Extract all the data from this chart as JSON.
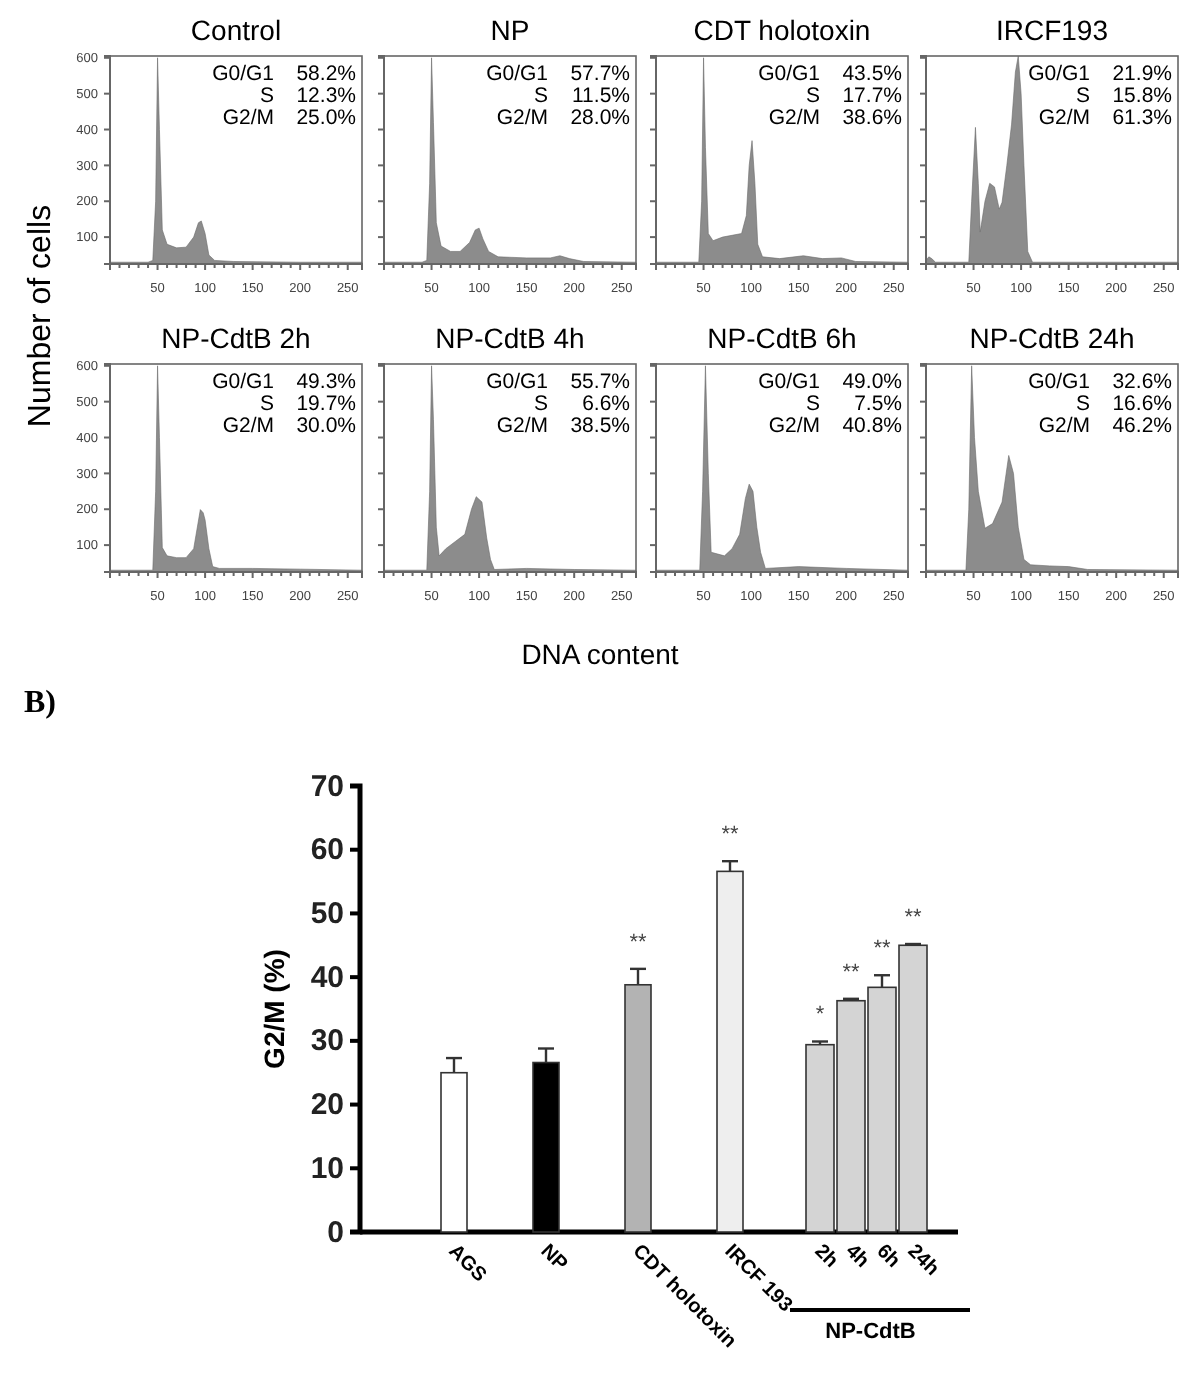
{
  "chart_data": [
    {
      "type": "area",
      "title": "Control",
      "ylabel": "Number of cells",
      "annotations": [
        "G0/G1 58.2%",
        "S 12.3%",
        "G2/M 25.0%"
      ],
      "xlim": [
        0,
        265
      ],
      "ylim": [
        25,
        605
      ],
      "xticks": [
        {
          "value": 10,
          "label": null
        },
        {
          "value": 20,
          "label": null
        },
        {
          "value": 30,
          "label": null
        },
        {
          "value": 40,
          "label": null
        },
        50,
        {
          "value": 60,
          "label": null
        },
        {
          "value": 70,
          "label": null
        },
        {
          "value": 80,
          "label": null
        },
        {
          "value": 90,
          "label": null
        },
        100,
        {
          "value": 110,
          "label": null
        },
        {
          "value": 120,
          "label": null
        },
        {
          "value": 130,
          "label": null
        },
        {
          "value": 140,
          "label": null
        },
        150,
        {
          "value": 160,
          "label": null
        },
        {
          "value": 170,
          "label": null
        },
        {
          "value": 180,
          "label": null
        },
        {
          "value": 190,
          "label": null
        },
        200,
        {
          "value": 210,
          "label": null
        },
        {
          "value": 220,
          "label": null
        },
        {
          "value": 230,
          "label": null
        },
        {
          "value": 240,
          "label": null
        },
        250
      ],
      "yticks": [
        100,
        200,
        300,
        400,
        500,
        600
      ],
      "marker": "none",
      "series": [
        {
          "color": "#8c8c8c",
          "x": [
            0,
            40,
            45,
            48,
            50,
            52,
            55,
            60,
            70,
            80,
            88,
            93,
            96,
            100,
            104,
            110,
            130,
            200,
            265
          ],
          "values": [
            30,
            30,
            35,
            200,
            600,
            400,
            120,
            80,
            70,
            72,
            100,
            140,
            145,
            110,
            50,
            35,
            32,
            30,
            30
          ]
        }
      ]
    },
    {
      "type": "area",
      "title": "NP",
      "annotations": [
        "G0/G1 57.7%",
        "S 11.5%",
        "G2/M 28.0%"
      ],
      "xlim": [
        0,
        265
      ],
      "ylim": [
        25,
        605
      ],
      "tick_labels": "x",
      "xticks": [
        {
          "value": 10,
          "label": null
        },
        {
          "value": 20,
          "label": null
        },
        {
          "value": 30,
          "label": null
        },
        {
          "value": 40,
          "label": null
        },
        50,
        {
          "value": 60,
          "label": null
        },
        {
          "value": 70,
          "label": null
        },
        {
          "value": 80,
          "label": null
        },
        {
          "value": 90,
          "label": null
        },
        100,
        {
          "value": 110,
          "label": null
        },
        {
          "value": 120,
          "label": null
        },
        {
          "value": 130,
          "label": null
        },
        {
          "value": 140,
          "label": null
        },
        150,
        {
          "value": 160,
          "label": null
        },
        {
          "value": 170,
          "label": null
        },
        {
          "value": 180,
          "label": null
        },
        {
          "value": 190,
          "label": null
        },
        200,
        {
          "value": 210,
          "label": null
        },
        {
          "value": 220,
          "label": null
        },
        {
          "value": 230,
          "label": null
        },
        {
          "value": 240,
          "label": null
        },
        250
      ],
      "yticks": [
        100,
        200,
        300,
        400,
        500,
        600
      ],
      "marker": "none",
      "series": [
        {
          "color": "#8c8c8c",
          "x": [
            0,
            40,
            45,
            48,
            50,
            52,
            55,
            60,
            70,
            80,
            90,
            96,
            100,
            104,
            110,
            120,
            150,
            175,
            185,
            195,
            210,
            265
          ],
          "values": [
            30,
            30,
            35,
            250,
            600,
            420,
            140,
            75,
            60,
            60,
            85,
            120,
            125,
            95,
            60,
            45,
            42,
            42,
            48,
            40,
            32,
            30
          ]
        }
      ]
    },
    {
      "type": "area",
      "title": "CDT holotoxin",
      "annotations": [
        "G0/G1 43.5%",
        "S 17.7%",
        "G2/M 38.6%"
      ],
      "xlim": [
        0,
        265
      ],
      "ylim": [
        25,
        605
      ],
      "tick_labels": "x",
      "xticks": [
        {
          "value": 10,
          "label": null
        },
        {
          "value": 20,
          "label": null
        },
        {
          "value": 30,
          "label": null
        },
        {
          "value": 40,
          "label": null
        },
        50,
        {
          "value": 60,
          "label": null
        },
        {
          "value": 70,
          "label": null
        },
        {
          "value": 80,
          "label": null
        },
        {
          "value": 90,
          "label": null
        },
        100,
        {
          "value": 110,
          "label": null
        },
        {
          "value": 120,
          "label": null
        },
        {
          "value": 130,
          "label": null
        },
        {
          "value": 140,
          "label": null
        },
        150,
        {
          "value": 160,
          "label": null
        },
        {
          "value": 170,
          "label": null
        },
        {
          "value": 180,
          "label": null
        },
        {
          "value": 190,
          "label": null
        },
        200,
        {
          "value": 210,
          "label": null
        },
        {
          "value": 220,
          "label": null
        },
        {
          "value": 230,
          "label": null
        },
        {
          "value": 240,
          "label": null
        },
        250
      ],
      "yticks": [
        100,
        200,
        300,
        400,
        500,
        600
      ],
      "marker": "none",
      "series": [
        {
          "color": "#8c8c8c",
          "x": [
            0,
            45,
            48,
            50,
            52,
            55,
            60,
            70,
            80,
            90,
            95,
            98,
            101,
            104,
            107,
            112,
            130,
            155,
            175,
            195,
            210,
            265
          ],
          "values": [
            30,
            30,
            200,
            600,
            350,
            110,
            90,
            100,
            105,
            110,
            160,
            300,
            369,
            250,
            80,
            45,
            40,
            48,
            40,
            42,
            32,
            30
          ]
        }
      ]
    },
    {
      "type": "area",
      "title": "IRCF193",
      "annotations": [
        "G0/G1 21.9%",
        "S 15.8%",
        "G2/M 61.3%"
      ],
      "xlim": [
        0,
        265
      ],
      "ylim": [
        25,
        605
      ],
      "tick_labels": "x",
      "xticks": [
        {
          "value": 10,
          "label": null
        },
        {
          "value": 20,
          "label": null
        },
        {
          "value": 30,
          "label": null
        },
        {
          "value": 40,
          "label": null
        },
        50,
        {
          "value": 60,
          "label": null
        },
        {
          "value": 70,
          "label": null
        },
        {
          "value": 80,
          "label": null
        },
        {
          "value": 90,
          "label": null
        },
        100,
        {
          "value": 110,
          "label": null
        },
        {
          "value": 120,
          "label": null
        },
        {
          "value": 130,
          "label": null
        },
        {
          "value": 140,
          "label": null
        },
        150,
        {
          "value": 160,
          "label": null
        },
        {
          "value": 170,
          "label": null
        },
        {
          "value": 180,
          "label": null
        },
        {
          "value": 190,
          "label": null
        },
        200,
        {
          "value": 210,
          "label": null
        },
        {
          "value": 220,
          "label": null
        },
        {
          "value": 230,
          "label": null
        },
        {
          "value": 240,
          "label": null
        },
        250
      ],
      "yticks": [
        100,
        200,
        300,
        400,
        500,
        600
      ],
      "marker": "none",
      "series": [
        {
          "color": "#8c8c8c",
          "x": [
            0,
            3,
            6,
            10,
            45,
            48,
            52,
            55,
            57,
            62,
            67,
            72,
            77,
            80,
            85,
            90,
            94,
            97,
            100,
            103,
            107,
            112,
            265
          ],
          "values": [
            35,
            45,
            40,
            30,
            30,
            200,
            406,
            250,
            114,
            200,
            250,
            240,
            178,
            197,
            300,
            415,
            560,
            605,
            500,
            300,
            60,
            30,
            30
          ]
        }
      ]
    },
    {
      "type": "area",
      "title": "NP-CdtB 2h",
      "annotations": [
        "G0/G1 49.3%",
        "S 19.7%",
        "G2/M 30.0%"
      ],
      "xlim": [
        0,
        265
      ],
      "ylim": [
        25,
        605
      ],
      "xticks": [
        {
          "value": 10,
          "label": null
        },
        {
          "value": 20,
          "label": null
        },
        {
          "value": 30,
          "label": null
        },
        {
          "value": 40,
          "label": null
        },
        50,
        {
          "value": 60,
          "label": null
        },
        {
          "value": 70,
          "label": null
        },
        {
          "value": 80,
          "label": null
        },
        {
          "value": 90,
          "label": null
        },
        100,
        {
          "value": 110,
          "label": null
        },
        {
          "value": 120,
          "label": null
        },
        {
          "value": 130,
          "label": null
        },
        {
          "value": 140,
          "label": null
        },
        150,
        {
          "value": 160,
          "label": null
        },
        {
          "value": 170,
          "label": null
        },
        {
          "value": 180,
          "label": null
        },
        {
          "value": 190,
          "label": null
        },
        200,
        {
          "value": 210,
          "label": null
        },
        {
          "value": 220,
          "label": null
        },
        {
          "value": 230,
          "label": null
        },
        {
          "value": 240,
          "label": null
        },
        250
      ],
      "yticks": [
        100,
        200,
        300,
        400,
        500,
        600
      ],
      "marker": "none",
      "series": [
        {
          "color": "#8c8c8c",
          "x": [
            0,
            45,
            48,
            50,
            52,
            55,
            60,
            70,
            80,
            88,
            95,
            98,
            100,
            104,
            108,
            115,
            150,
            200,
            265
          ],
          "values": [
            30,
            30,
            250,
            600,
            400,
            93,
            70,
            65,
            65,
            90,
            199,
            190,
            170,
            90,
            40,
            35,
            35,
            33,
            30
          ]
        }
      ]
    },
    {
      "type": "area",
      "title": "NP-CdtB 4h",
      "xlabel": "DNA content",
      "annotations": [
        "G0/G1 55.7%",
        "S 6.6%",
        "G2/M 38.5%"
      ],
      "xlim": [
        0,
        265
      ],
      "ylim": [
        25,
        605
      ],
      "tick_labels": "x",
      "xticks": [
        {
          "value": 10,
          "label": null
        },
        {
          "value": 20,
          "label": null
        },
        {
          "value": 30,
          "label": null
        },
        {
          "value": 40,
          "label": null
        },
        50,
        {
          "value": 60,
          "label": null
        },
        {
          "value": 70,
          "label": null
        },
        {
          "value": 80,
          "label": null
        },
        {
          "value": 90,
          "label": null
        },
        100,
        {
          "value": 110,
          "label": null
        },
        {
          "value": 120,
          "label": null
        },
        {
          "value": 130,
          "label": null
        },
        {
          "value": 140,
          "label": null
        },
        150,
        {
          "value": 160,
          "label": null
        },
        {
          "value": 170,
          "label": null
        },
        {
          "value": 180,
          "label": null
        },
        {
          "value": 190,
          "label": null
        },
        200,
        {
          "value": 210,
          "label": null
        },
        {
          "value": 220,
          "label": null
        },
        {
          "value": 230,
          "label": null
        },
        {
          "value": 240,
          "label": null
        },
        250
      ],
      "yticks": [
        100,
        200,
        300,
        400,
        500,
        600
      ],
      "marker": "none",
      "series": [
        {
          "color": "#8c8c8c",
          "x": [
            0,
            45,
            48,
            50,
            52,
            55,
            58,
            65,
            75,
            85,
            92,
            97,
            103,
            108,
            112,
            116,
            150,
            200,
            265
          ],
          "values": [
            30,
            30,
            250,
            600,
            450,
            150,
            70,
            90,
            110,
            130,
            200,
            235,
            220,
            120,
            60,
            32,
            35,
            32,
            30
          ]
        }
      ]
    },
    {
      "type": "area",
      "title": "NP-CdtB 6h",
      "annotations": [
        "G0/G1 49.0%",
        "S 7.5%",
        "G2/M 40.8%"
      ],
      "xlim": [
        0,
        265
      ],
      "ylim": [
        25,
        605
      ],
      "tick_labels": "x",
      "xticks": [
        {
          "value": 10,
          "label": null
        },
        {
          "value": 20,
          "label": null
        },
        {
          "value": 30,
          "label": null
        },
        {
          "value": 40,
          "label": null
        },
        50,
        {
          "value": 60,
          "label": null
        },
        {
          "value": 70,
          "label": null
        },
        {
          "value": 80,
          "label": null
        },
        {
          "value": 90,
          "label": null
        },
        100,
        {
          "value": 110,
          "label": null
        },
        {
          "value": 120,
          "label": null
        },
        {
          "value": 130,
          "label": null
        },
        {
          "value": 140,
          "label": null
        },
        150,
        {
          "value": 160,
          "label": null
        },
        {
          "value": 170,
          "label": null
        },
        {
          "value": 180,
          "label": null
        },
        {
          "value": 190,
          "label": null
        },
        200,
        {
          "value": 210,
          "label": null
        },
        {
          "value": 220,
          "label": null
        },
        {
          "value": 230,
          "label": null
        },
        {
          "value": 240,
          "label": null
        },
        250
      ],
      "yticks": [
        100,
        200,
        300,
        400,
        500,
        600
      ],
      "marker": "none",
      "series": [
        {
          "color": "#8c8c8c",
          "x": [
            0,
            46,
            49,
            52,
            55,
            58,
            65,
            72,
            80,
            88,
            94,
            98,
            102,
            106,
            110,
            115,
            150,
            200,
            265
          ],
          "values": [
            30,
            30,
            250,
            600,
            300,
            80,
            75,
            70,
            90,
            130,
            230,
            270,
            250,
            150,
            80,
            35,
            40,
            35,
            30
          ]
        }
      ]
    },
    {
      "type": "area",
      "title": "NP-CdtB 24h",
      "annotations": [
        "G0/G1 32.6%",
        "S 16.6%",
        "G2/M 46.2%"
      ],
      "xlim": [
        0,
        265
      ],
      "ylim": [
        25,
        605
      ],
      "tick_labels": "x",
      "xticks": [
        {
          "value": 10,
          "label": null
        },
        {
          "value": 20,
          "label": null
        },
        {
          "value": 30,
          "label": null
        },
        {
          "value": 40,
          "label": null
        },
        50,
        {
          "value": 60,
          "label": null
        },
        {
          "value": 70,
          "label": null
        },
        {
          "value": 80,
          "label": null
        },
        {
          "value": 90,
          "label": null
        },
        100,
        {
          "value": 110,
          "label": null
        },
        {
          "value": 120,
          "label": null
        },
        {
          "value": 130,
          "label": null
        },
        {
          "value": 140,
          "label": null
        },
        150,
        {
          "value": 160,
          "label": null
        },
        {
          "value": 170,
          "label": null
        },
        {
          "value": 180,
          "label": null
        },
        {
          "value": 190,
          "label": null
        },
        200,
        {
          "value": 210,
          "label": null
        },
        {
          "value": 220,
          "label": null
        },
        {
          "value": 230,
          "label": null
        },
        {
          "value": 240,
          "label": null
        },
        250
      ],
      "yticks": [
        100,
        200,
        300,
        400,
        500,
        600
      ],
      "marker": "none",
      "series": [
        {
          "color": "#8c8c8c",
          "x": [
            0,
            42,
            45,
            48,
            51,
            55,
            62,
            70,
            80,
            87,
            92,
            97,
            103,
            110,
            130,
            150,
            170,
            265
          ],
          "values": [
            30,
            30,
            200,
            600,
            400,
            250,
            147,
            160,
            220,
            350,
            300,
            150,
            60,
            45,
            42,
            40,
            32,
            30
          ]
        }
      ]
    },
    {
      "type": "bar",
      "ylabel": "G2/M (%)",
      "annotations": [
        "B)",
        "**",
        "**",
        "*",
        "**",
        "**",
        "**",
        "NP-CdtB"
      ],
      "categories": [
        "AGS",
        "NP",
        "CDT holotoxin",
        "IRCF 193",
        "2h",
        "4h",
        "6h",
        "24h"
      ],
      "values": [
        25.0,
        26.6,
        38.8,
        56.6,
        29.4,
        36.3,
        38.4,
        45.0
      ],
      "errors": [
        2.3,
        2.2,
        2.5,
        1.6,
        0.5,
        0.3,
        1.9,
        0.2
      ],
      "colors": [
        "#ffffff",
        "#000000",
        "#b3b3b3",
        "#eeeeee",
        "#d4d4d4",
        "#d4d4d4",
        "#d4d4d4",
        "#d4d4d4"
      ],
      "ylim": [
        0,
        70
      ],
      "yticks": [
        0,
        10,
        20,
        30,
        40,
        50,
        60,
        70
      ]
    }
  ]
}
